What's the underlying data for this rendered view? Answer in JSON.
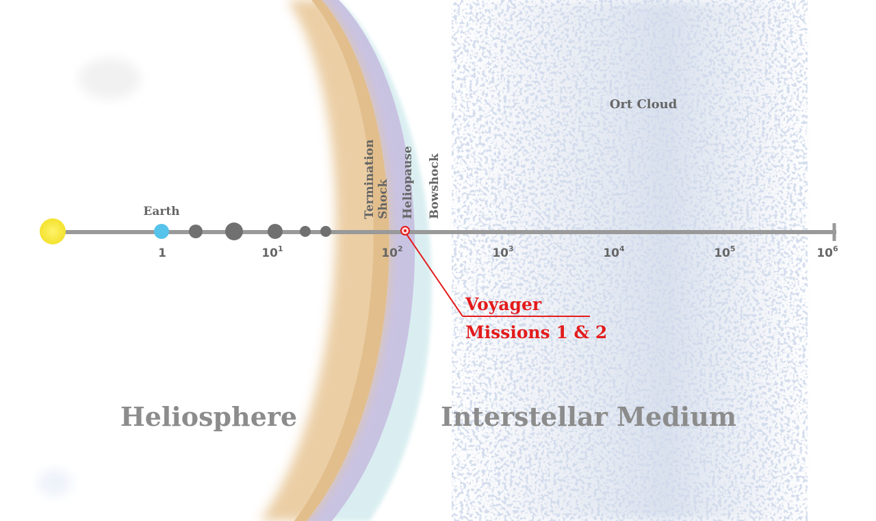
{
  "labels": {
    "earth": "Earth",
    "termination_shock": [
      "Termination",
      "Shock"
    ],
    "heliopause": "Heliopause",
    "bowshock": "Bowshock",
    "oort_cloud": "Ort Cloud",
    "voyager": [
      "Voyager",
      "Missions 1 & 2"
    ],
    "heliosphere": "Heliosphere",
    "interstellar_medium": "Interstellar Medium"
  },
  "axis": {
    "scale": "log",
    "ticks": [
      {
        "base": "1",
        "exp": ""
      },
      {
        "base": "10",
        "exp": "1"
      },
      {
        "base": "10",
        "exp": "2"
      },
      {
        "base": "10",
        "exp": "3"
      },
      {
        "base": "10",
        "exp": "4"
      },
      {
        "base": "10",
        "exp": "5"
      },
      {
        "base": "10",
        "exp": "6"
      }
    ]
  },
  "colors": {
    "axis": "#999999",
    "sun": "#f7ea3c",
    "earth": "#55c3ea",
    "planet": "#707070",
    "termination_shock_band": "#e8c99a",
    "heliopause_band": "#c8c2e0",
    "bowshock_band": "#d7eef0",
    "oort_cloud": "#b3c3dc",
    "voyager": "#e31b1b",
    "label": "#666666",
    "region_label": "#8c8c8c"
  }
}
